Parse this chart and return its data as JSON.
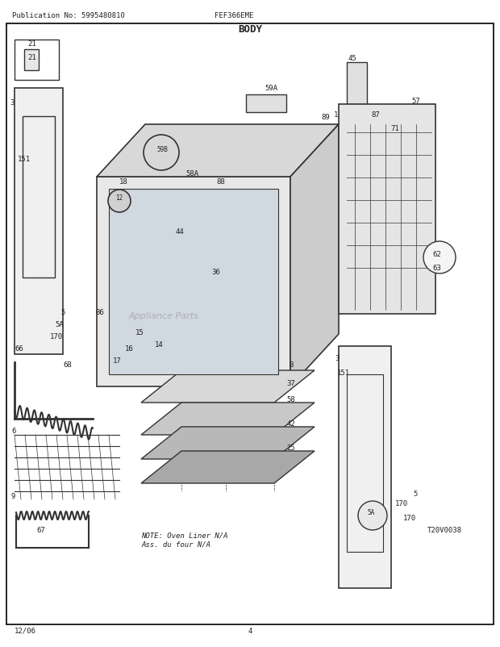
{
  "title": "BODY",
  "pub_no": "Publication No: 5995480810",
  "model": "FEF366EME",
  "date": "12/06",
  "page": "4",
  "ref_code": "T20V0038",
  "note_text": "NOTE: Oven Liner N/A\nAss. du four N/A",
  "bg_color": "#ffffff",
  "border_color": "#000000",
  "line_color": "#333333",
  "text_color": "#222222",
  "diagram_image_placeholder": true
}
